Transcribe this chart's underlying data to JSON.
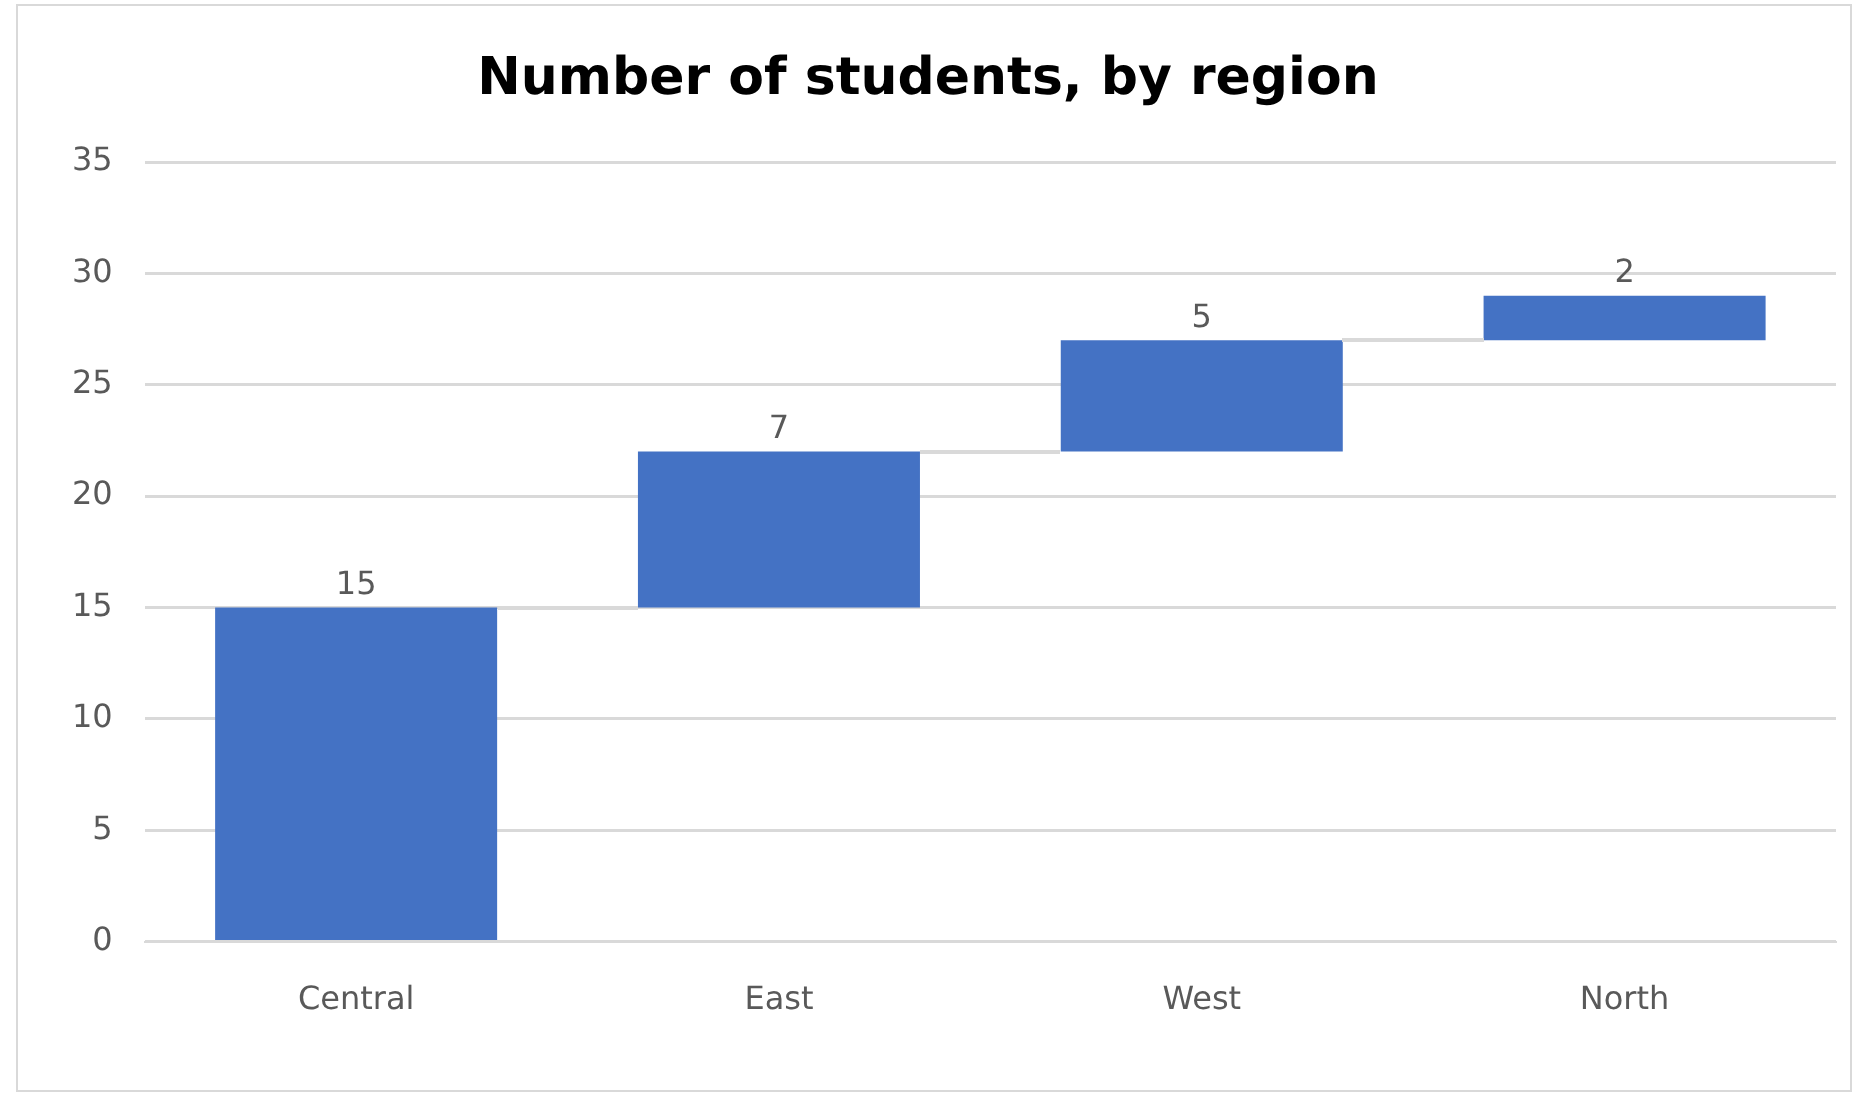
{
  "chart_data": {
    "type": "bar",
    "title": "Number of students, by region",
    "categories": [
      "Central",
      "East",
      "West",
      "North"
    ],
    "values": [
      15,
      7,
      5,
      2
    ],
    "base": [
      0,
      15,
      22,
      27
    ],
    "color": "#4472c4",
    "ylim": [
      0,
      35
    ],
    "yticks": [
      0,
      5,
      10,
      15,
      20,
      25,
      30,
      35
    ],
    "grid": "y",
    "data_labels": true,
    "legend": false
  }
}
